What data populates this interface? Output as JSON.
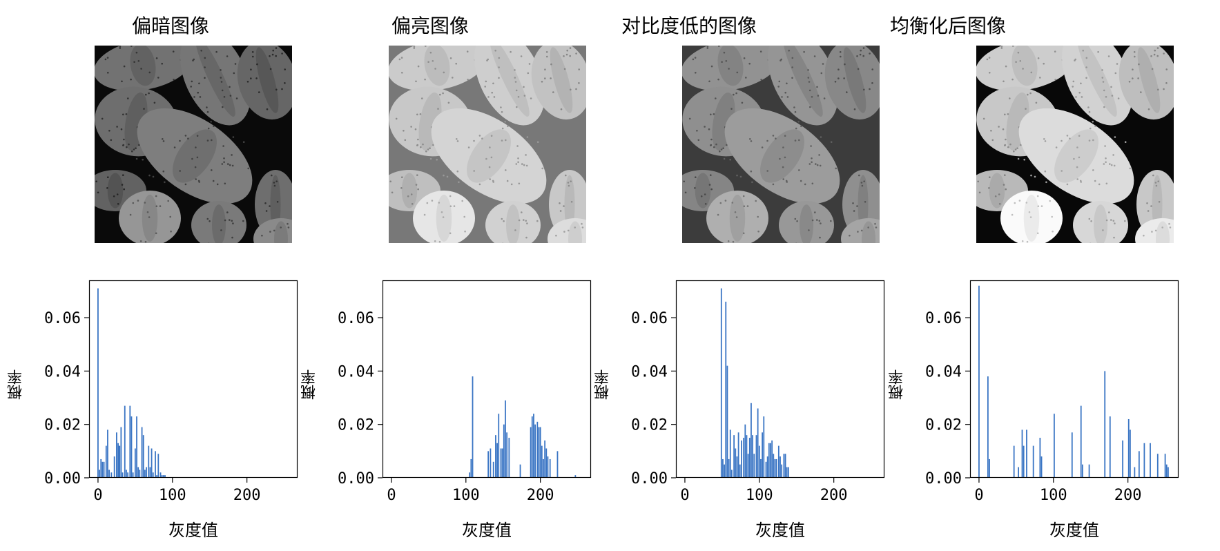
{
  "figure": {
    "panels": [
      {
        "title": "偏暗图像",
        "tone": "dark"
      },
      {
        "title": "偏亮图像",
        "tone": "bright"
      },
      {
        "title": "对比度低的图像",
        "tone": "lowcontrast"
      },
      {
        "title": "均衡化后图像",
        "tone": "equalized"
      }
    ]
  },
  "colors": {
    "bar": "#3a75c4",
    "axis": "#000000"
  },
  "chart_data": [
    {
      "type": "bar",
      "title": "",
      "xlabel": "灰度值",
      "ylabel": "概率",
      "xlim": [
        -12,
        268
      ],
      "ylim": [
        0,
        0.074
      ],
      "xticks": [
        0,
        100,
        200
      ],
      "yticks": [
        0.0,
        0.02,
        0.04,
        0.06
      ],
      "ytick_labels": [
        "0.00",
        "0.02",
        "0.04",
        "0.06"
      ],
      "x": [
        0,
        2,
        4,
        6,
        8,
        11,
        13,
        15,
        18,
        22,
        25,
        27,
        28,
        29,
        31,
        33,
        36,
        38,
        40,
        43,
        45,
        47,
        50,
        52,
        54,
        56,
        59,
        61,
        63,
        65,
        68,
        70,
        72,
        74,
        77,
        79,
        81,
        84,
        86,
        88,
        90
      ],
      "values": [
        0.071,
        0.003,
        0.007,
        0.006,
        0.006,
        0.012,
        0.018,
        0.003,
        0.002,
        0.008,
        0.017,
        0.013,
        0.012,
        0.012,
        0.019,
        0.002,
        0.027,
        0.003,
        0.002,
        0.027,
        0.023,
        0.002,
        0.011,
        0.023,
        0.004,
        0.003,
        0.019,
        0.016,
        0.003,
        0.004,
        0.012,
        0.004,
        0.011,
        0.002,
        0.01,
        0.001,
        0.009,
        0.002,
        0.001,
        0.001,
        0.001
      ]
    },
    {
      "type": "bar",
      "title": "",
      "xlabel": "灰度值",
      "ylabel": "概率",
      "xlim": [
        -12,
        268
      ],
      "ylim": [
        0,
        0.074
      ],
      "xticks": [
        0,
        100,
        200
      ],
      "yticks": [
        0.0,
        0.02,
        0.04,
        0.06
      ],
      "ytick_labels": [
        "0.00",
        "0.02",
        "0.04",
        "0.06"
      ],
      "x": [
        105,
        107,
        109,
        130,
        133,
        137,
        140,
        142,
        144,
        147,
        149,
        151,
        153,
        155,
        158,
        173,
        187,
        189,
        191,
        193,
        196,
        198,
        200,
        202,
        204,
        206,
        208,
        210,
        213,
        223,
        247
      ],
      "values": [
        0.002,
        0.007,
        0.038,
        0.01,
        0.011,
        0.006,
        0.016,
        0.013,
        0.024,
        0.011,
        0.011,
        0.02,
        0.029,
        0.017,
        0.015,
        0.005,
        0.019,
        0.023,
        0.024,
        0.02,
        0.021,
        0.019,
        0.019,
        0.012,
        0.007,
        0.014,
        0.011,
        0.008,
        0.007,
        0.01,
        0.001
      ]
    },
    {
      "type": "bar",
      "title": "",
      "xlabel": "灰度值",
      "ylabel": "概率",
      "xlim": [
        -12,
        268
      ],
      "ylim": [
        0,
        0.074
      ],
      "xticks": [
        0,
        100,
        200
      ],
      "yticks": [
        0.0,
        0.02,
        0.04,
        0.06
      ],
      "ytick_labels": [
        "0.00",
        "0.02",
        "0.04",
        "0.06"
      ],
      "x": [
        49,
        51,
        53,
        55,
        57,
        59,
        61,
        63,
        66,
        68,
        70,
        72,
        74,
        76,
        79,
        81,
        83,
        85,
        87,
        89,
        91,
        93,
        96,
        98,
        100,
        102,
        104,
        106,
        109,
        111,
        113,
        115,
        117,
        119,
        121,
        123,
        126,
        128,
        130,
        133,
        135,
        137,
        139
      ],
      "values": [
        0.071,
        0.007,
        0.005,
        0.066,
        0.042,
        0.007,
        0.018,
        0.003,
        0.016,
        0.011,
        0.008,
        0.017,
        0.005,
        0.014,
        0.015,
        0.02,
        0.016,
        0.009,
        0.015,
        0.028,
        0.016,
        0.009,
        0.016,
        0.026,
        0.012,
        0.007,
        0.017,
        0.023,
        0.006,
        0.008,
        0.013,
        0.013,
        0.014,
        0.009,
        0.007,
        0.007,
        0.012,
        0.008,
        0.005,
        0.009,
        0.009,
        0.004,
        0.004
      ]
    },
    {
      "type": "bar",
      "title": "",
      "xlabel": "灰度值",
      "ylabel": "概率",
      "xlim": [
        -12,
        268
      ],
      "ylim": [
        0,
        0.074
      ],
      "xticks": [
        0,
        100,
        200
      ],
      "yticks": [
        0.0,
        0.02,
        0.04,
        0.06
      ],
      "ytick_labels": [
        "0.00",
        "0.02",
        "0.04",
        "0.06"
      ],
      "x": [
        0,
        12,
        14,
        47,
        53,
        58,
        60,
        64,
        73,
        82,
        84,
        101,
        125,
        137,
        139,
        148,
        169,
        176,
        193,
        201,
        203,
        209,
        215,
        222,
        230,
        240,
        250,
        252,
        254
      ],
      "values": [
        0.072,
        0.038,
        0.007,
        0.012,
        0.004,
        0.018,
        0.012,
        0.018,
        0.012,
        0.015,
        0.008,
        0.024,
        0.017,
        0.027,
        0.005,
        0.005,
        0.04,
        0.023,
        0.014,
        0.022,
        0.018,
        0.004,
        0.01,
        0.013,
        0.013,
        0.009,
        0.009,
        0.005,
        0.004
      ]
    }
  ]
}
